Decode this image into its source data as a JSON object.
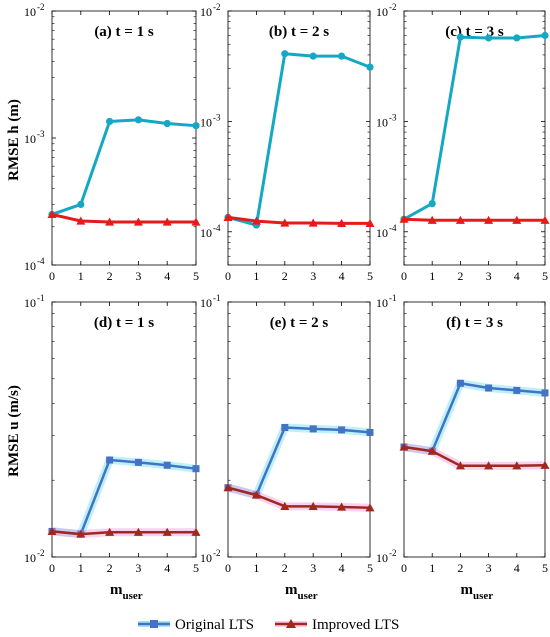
{
  "chart_data": [
    {
      "type": "line",
      "row": "h",
      "col": 1,
      "title": "(a) t = 1 s",
      "ylabel": "RMSE h (m)",
      "yscale": "log",
      "ylim": [
        0.0001,
        0.01
      ],
      "xlabel": "",
      "xlim": [
        0,
        5
      ],
      "yticklabels": [
        "10",
        "10",
        "10"
      ],
      "yticklabel_exponents": [
        "-4",
        "-3",
        "-2"
      ],
      "series": [
        {
          "name": "Original LTS",
          "x": [
            0,
            1,
            2,
            3,
            4,
            5
          ],
          "y": [
            0.00025,
            0.0003,
            0.00135,
            0.00139,
            0.0013,
            0.00125
          ]
        },
        {
          "name": "Improved LTS",
          "x": [
            0,
            1,
            2,
            3,
            4,
            5
          ],
          "y": [
            0.00025,
            0.000222,
            0.000218,
            0.000218,
            0.000218,
            0.000218
          ]
        }
      ]
    },
    {
      "type": "line",
      "row": "h",
      "col": 2,
      "title": "(b) t = 2 s",
      "ylabel": "",
      "yscale": "log",
      "ylim": [
        5e-05,
        0.01
      ],
      "xlabel": "",
      "xlim": [
        0,
        5
      ],
      "yticklabels": [
        "10",
        "10",
        "10"
      ],
      "yticklabel_exponents": [
        "-4",
        "-3",
        "-2"
      ],
      "series": [
        {
          "name": "Original LTS",
          "x": [
            0,
            1,
            2,
            3,
            4,
            5
          ],
          "y": [
            0.000135,
            0.000115,
            0.0041,
            0.0039,
            0.0039,
            0.0031
          ]
        },
        {
          "name": "Improved LTS",
          "x": [
            0,
            1,
            2,
            3,
            4,
            5
          ],
          "y": [
            0.000135,
            0.000125,
            0.00012,
            0.00012,
            0.000119,
            0.000119
          ]
        }
      ]
    },
    {
      "type": "line",
      "row": "h",
      "col": 3,
      "title": "(c) t = 3 s",
      "ylabel": "",
      "yscale": "log",
      "ylim": [
        5e-05,
        0.01
      ],
      "xlabel": "",
      "xlim": [
        0,
        5
      ],
      "yticklabels": [
        "10",
        "10",
        "10"
      ],
      "yticklabel_exponents": [
        "-4",
        "-3",
        "-2"
      ],
      "series": [
        {
          "name": "Original LTS",
          "x": [
            0,
            1,
            2,
            3,
            4,
            5
          ],
          "y": [
            0.00013,
            0.00018,
            0.0058,
            0.0057,
            0.0057,
            0.006
          ]
        },
        {
          "name": "Improved LTS",
          "x": [
            0,
            1,
            2,
            3,
            4,
            5
          ],
          "y": [
            0.00013,
            0.000127,
            0.000127,
            0.000127,
            0.000127,
            0.000127
          ]
        }
      ]
    },
    {
      "type": "line",
      "row": "u",
      "col": 1,
      "title": "(d) t = 1 s",
      "ylabel": "RMSE u (m/s)",
      "yscale": "log",
      "ylim": [
        0.01,
        0.1
      ],
      "xlabel": "m_user",
      "xlim": [
        0,
        5
      ],
      "xticklabels": [
        "0",
        "1",
        "2",
        "3",
        "4",
        "5"
      ],
      "yticklabels": [
        "10",
        "10"
      ],
      "yticklabel_exponents": [
        "-2",
        "-1"
      ],
      "series": [
        {
          "name": "Original LTS",
          "x": [
            0,
            1,
            2,
            3,
            4,
            5
          ],
          "y": [
            0.0126,
            0.0123,
            0.024,
            0.0235,
            0.0229,
            0.0222
          ]
        },
        {
          "name": "Improved LTS",
          "x": [
            0,
            1,
            2,
            3,
            4,
            5
          ],
          "y": [
            0.0126,
            0.0123,
            0.0125,
            0.0125,
            0.0125,
            0.0125
          ]
        }
      ]
    },
    {
      "type": "line",
      "row": "u",
      "col": 2,
      "title": "(e) t = 2 s",
      "ylabel": "",
      "yscale": "log",
      "ylim": [
        0.01,
        0.1
      ],
      "xlabel": "m_user",
      "xlim": [
        0,
        5
      ],
      "xticklabels": [
        "0",
        "1",
        "2",
        "3",
        "4",
        "5"
      ],
      "yticklabels": [
        "10",
        "10"
      ],
      "yticklabel_exponents": [
        "-2",
        "-1"
      ],
      "series": [
        {
          "name": "Original LTS",
          "x": [
            0,
            1,
            2,
            3,
            4,
            5
          ],
          "y": [
            0.0187,
            0.0175,
            0.0322,
            0.0318,
            0.0315,
            0.0308
          ]
        },
        {
          "name": "Improved LTS",
          "x": [
            0,
            1,
            2,
            3,
            4,
            5
          ],
          "y": [
            0.0187,
            0.0175,
            0.0158,
            0.0158,
            0.0157,
            0.0156
          ]
        }
      ]
    },
    {
      "type": "line",
      "row": "u",
      "col": 3,
      "title": "(f) t = 3 s",
      "ylabel": "",
      "yscale": "log",
      "ylim": [
        0.01,
        0.1
      ],
      "xlabel": "m_user",
      "xlim": [
        0,
        5
      ],
      "xticklabels": [
        "0",
        "1",
        "2",
        "3",
        "4",
        "5"
      ],
      "yticklabels": [
        "10",
        "10"
      ],
      "yticklabel_exponents": [
        "-2",
        "-1"
      ],
      "series": [
        {
          "name": "Original LTS",
          "x": [
            0,
            1,
            2,
            3,
            4,
            5
          ],
          "y": [
            0.027,
            0.026,
            0.048,
            0.046,
            0.045,
            0.044
          ]
        },
        {
          "name": "Improved LTS",
          "x": [
            0,
            1,
            2,
            3,
            4,
            5
          ],
          "y": [
            0.027,
            0.026,
            0.0228,
            0.0228,
            0.0228,
            0.0229
          ]
        }
      ]
    }
  ],
  "legend": {
    "placement": "bottom",
    "items": [
      {
        "label": "Original LTS",
        "line_color": "#4472C4",
        "highlight_color": "#00B3D6",
        "marker": "square"
      },
      {
        "label": "Improved LTS",
        "line_color": "#A0281C",
        "highlight_color": "#EE66C8",
        "marker": "triangle"
      }
    ]
  },
  "colors": {
    "h_row_original": "#14A8C4",
    "h_row_improved": "#E61A1A",
    "u_row_original_line": "#4472C4",
    "u_row_original_glow": "#3FD8F0",
    "u_row_improved_line": "#A0281C",
    "u_row_improved_glow": "#F27AD8"
  }
}
